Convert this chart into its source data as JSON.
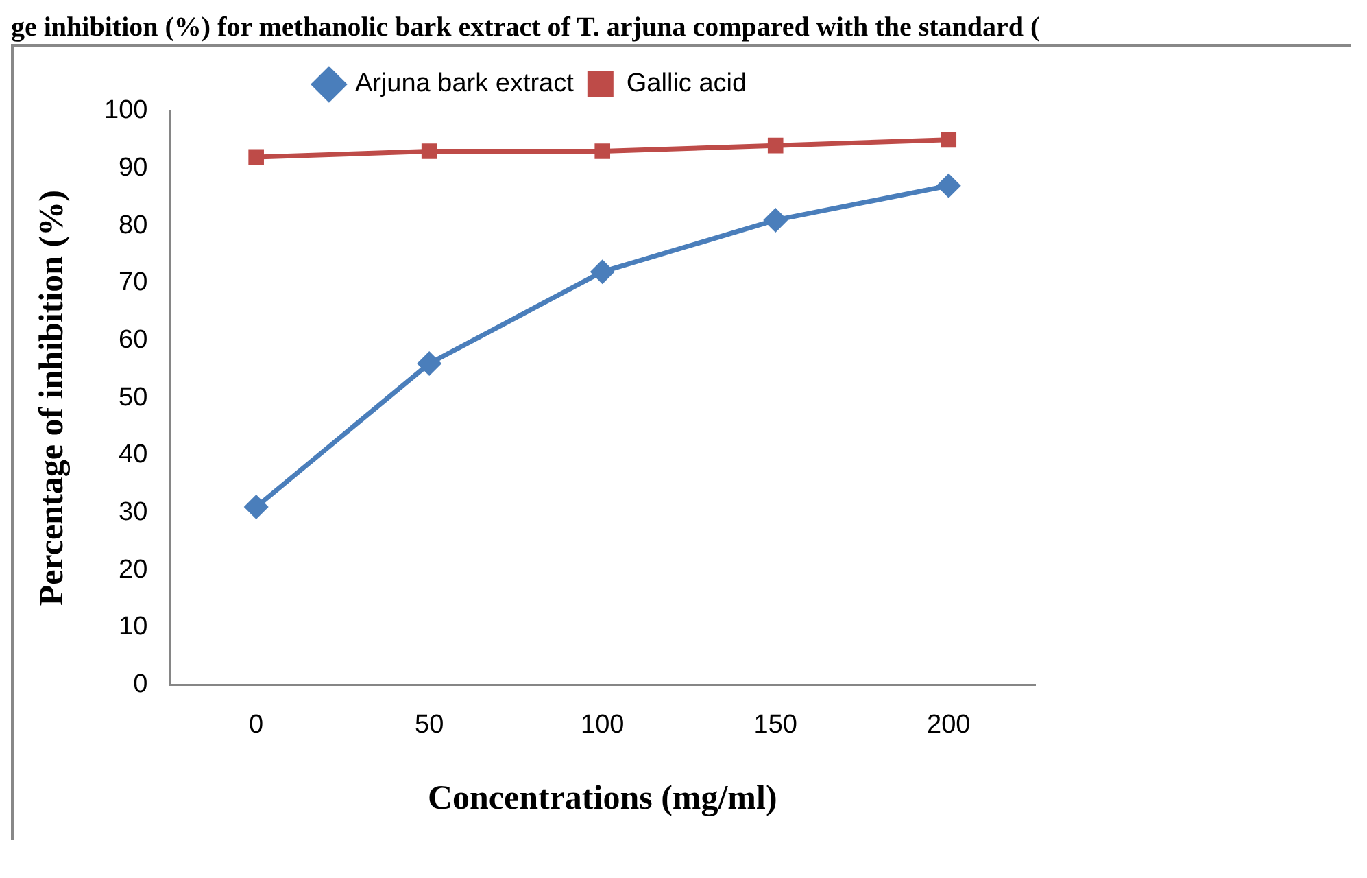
{
  "chart_data": {
    "type": "line",
    "title": "ge inhibition (%) for methanolic bark extract of T. arjuna compared with the standard (",
    "xlabel": "Concentrations (mg/ml)",
    "ylabel": "Percentage of inhibition (%)",
    "categories": [
      "0",
      "50",
      "100",
      "150",
      "200"
    ],
    "series": [
      {
        "name": "Arjuna bark extract",
        "color": "#4a7ebb",
        "marker": "diamond",
        "values": [
          31,
          56,
          72,
          81,
          87
        ]
      },
      {
        "name": "Gallic acid",
        "color": "#be4b48",
        "marker": "square",
        "values": [
          92,
          93,
          93,
          94,
          95
        ]
      }
    ],
    "ylim": [
      0,
      100
    ],
    "yticks": [
      0,
      10,
      20,
      30,
      40,
      50,
      60,
      70,
      80,
      90,
      100
    ],
    "grid": false,
    "legend": "top",
    "line_style": "solid"
  }
}
